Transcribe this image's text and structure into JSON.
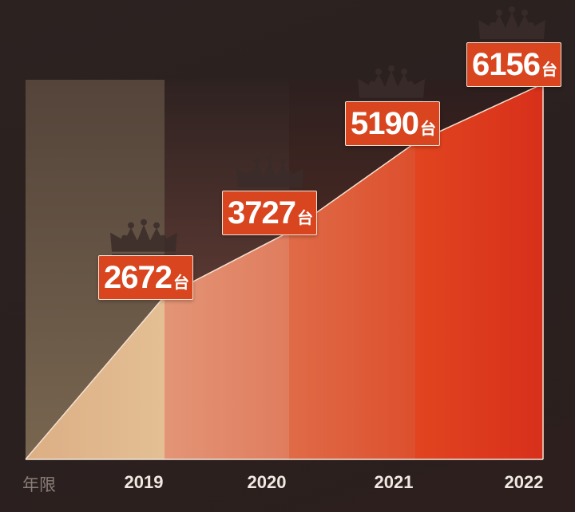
{
  "chart_data": {
    "type": "area",
    "categories": [
      "2019",
      "2020",
      "2021",
      "2022"
    ],
    "values": [
      2672,
      3727,
      5190,
      6156
    ],
    "unit": "台",
    "xlabel": "年限",
    "title": "",
    "ylim": [
      0,
      6300
    ],
    "colors": {
      "band_2019": "#e2b48a",
      "band_2020": "#e19072",
      "band_2021": "#df5a36",
      "band_2022": "#e1351e",
      "label_bg": "#d8451f",
      "crown": "#3a2c2a"
    }
  }
}
